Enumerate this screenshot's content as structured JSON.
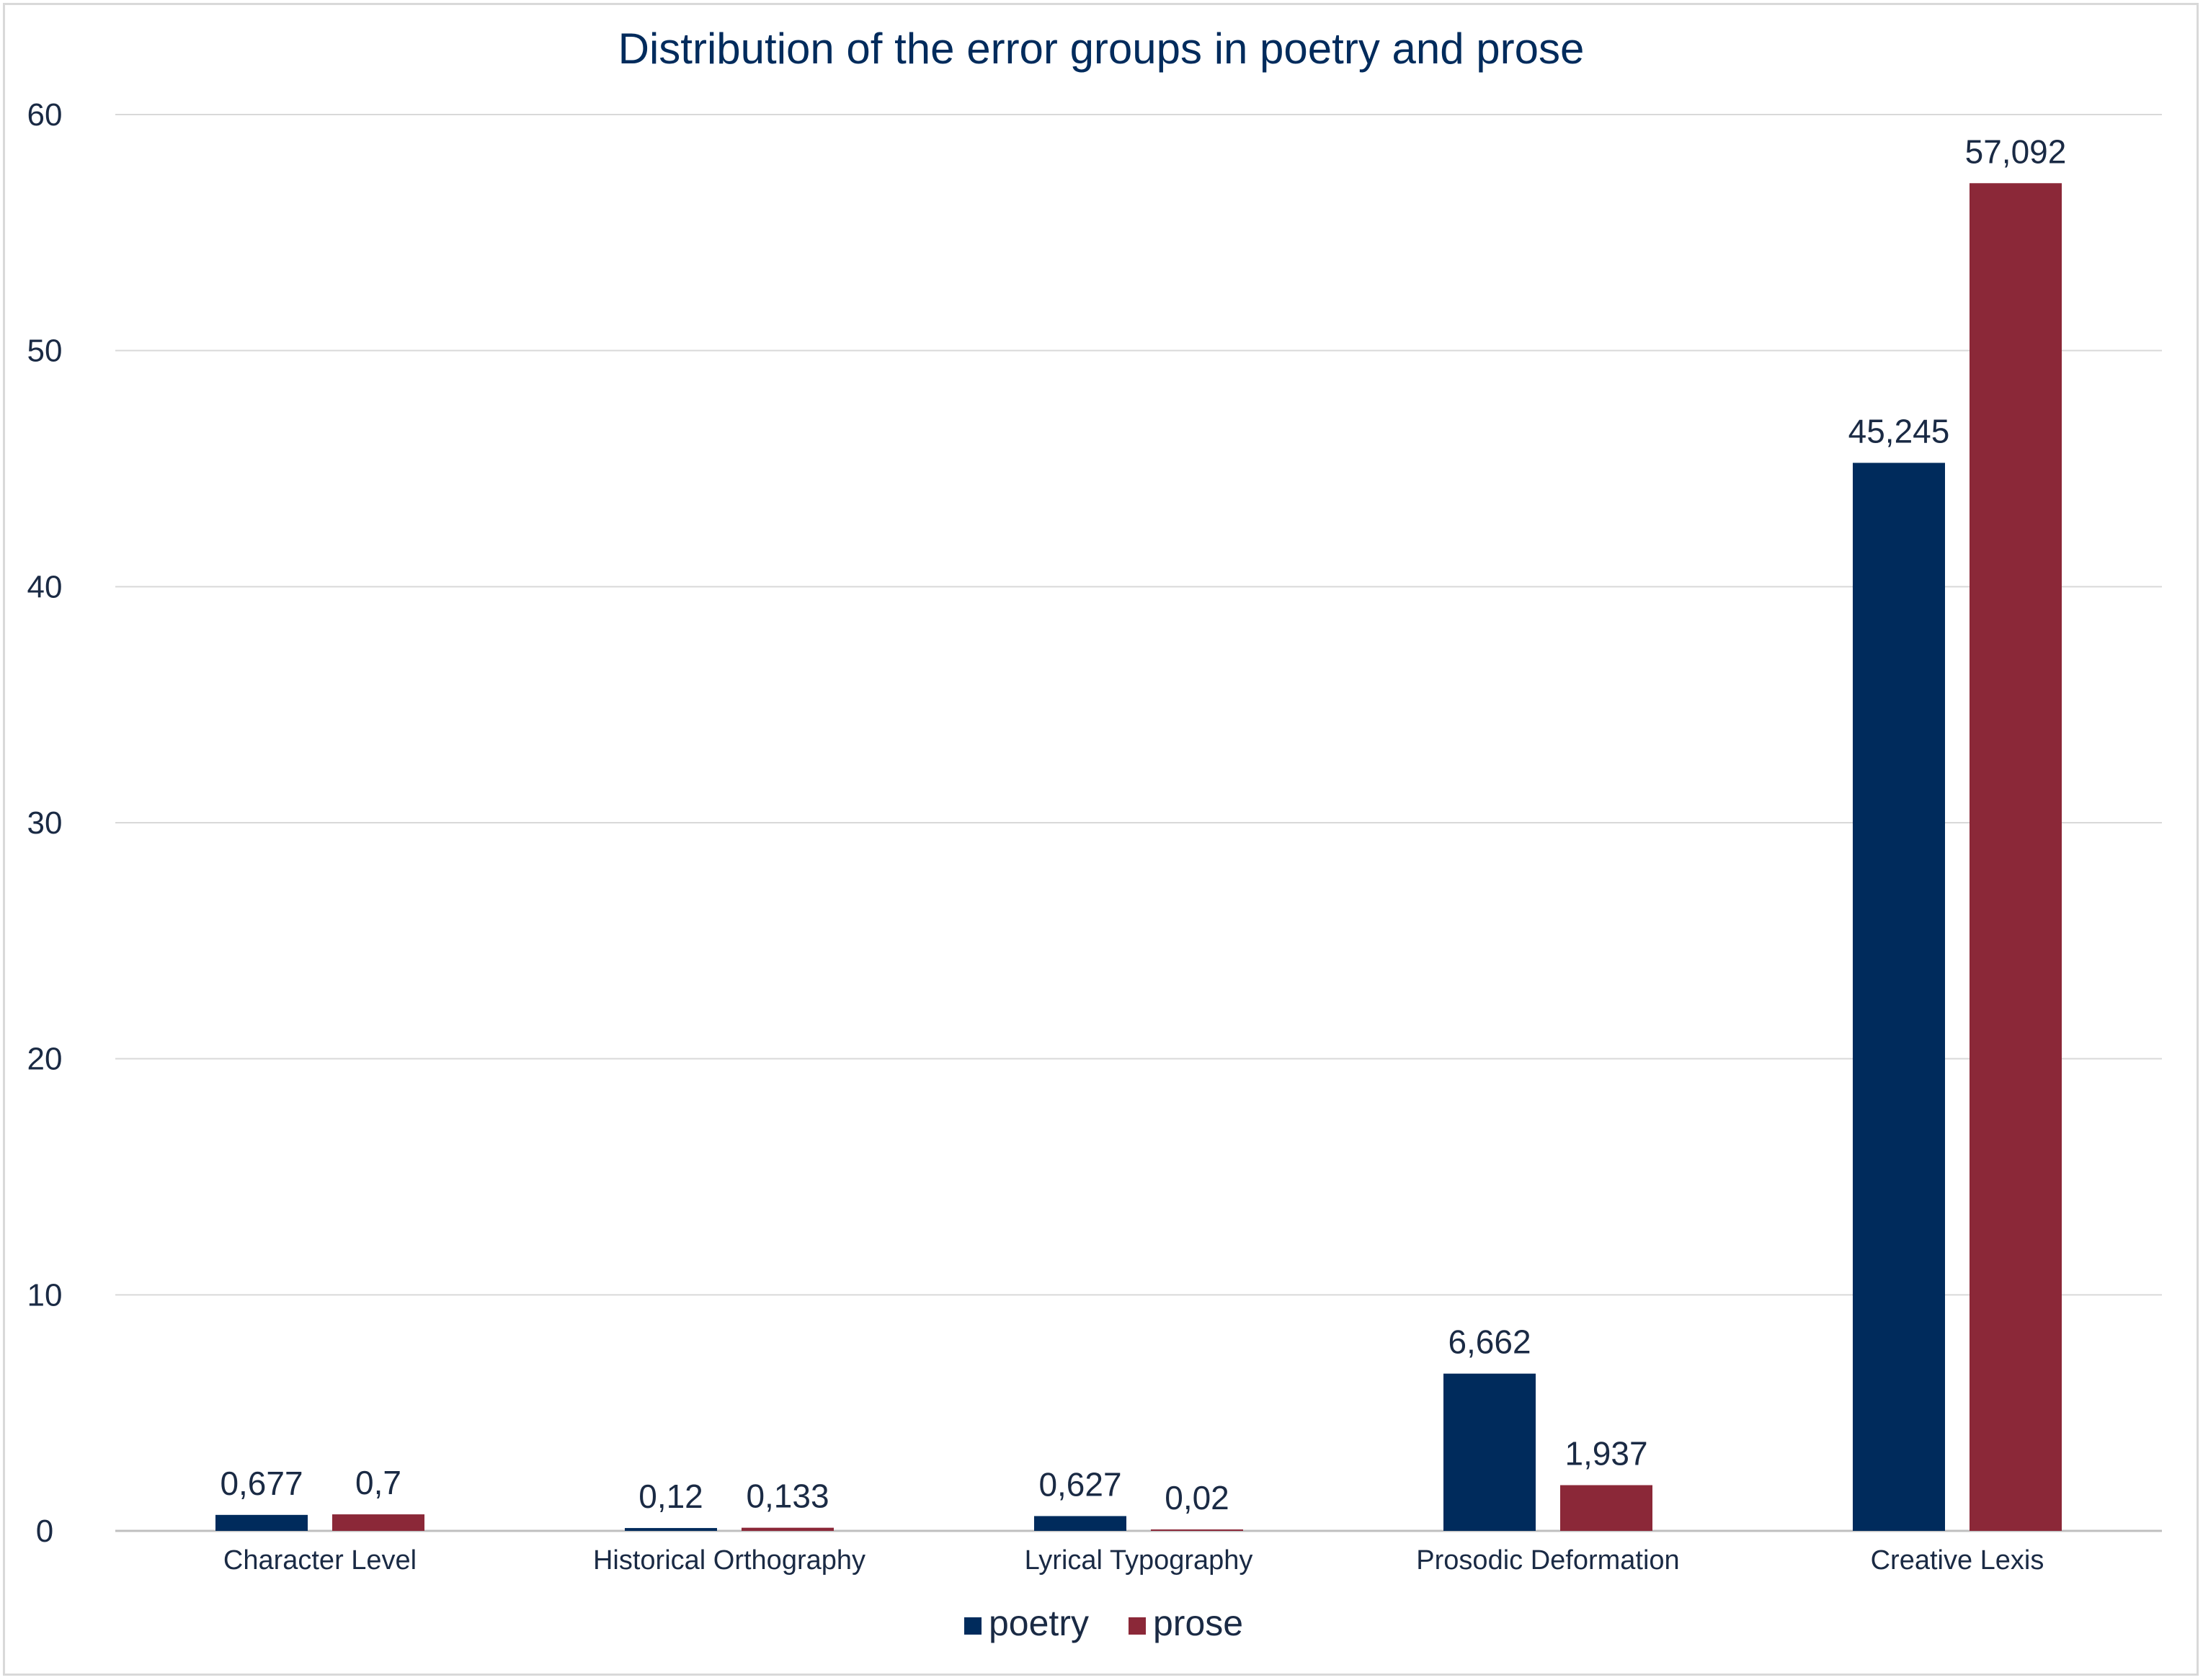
{
  "chart_data": {
    "type": "bar",
    "title": "Distribution of the error groups in poetry and prose",
    "xlabel": "",
    "ylabel": "",
    "categories": [
      "Character Level",
      "Historical Orthography",
      "Lyrical Typography",
      "Prosodic Deformation",
      "Creative Lexis"
    ],
    "series": [
      {
        "name": "poetry",
        "color": "#002b5c",
        "values": [
          0.677,
          0.12,
          0.627,
          6.662,
          45.245
        ],
        "labels": [
          "0,677",
          "0,12",
          "0,627",
          "6,662",
          "45,245"
        ]
      },
      {
        "name": "prose",
        "color": "#8b2838",
        "values": [
          0.7,
          0.133,
          0.02,
          1.937,
          57.092
        ],
        "labels": [
          "0,7",
          "0,133",
          "0,02",
          "1,937",
          "57,092"
        ]
      }
    ],
    "ylim": [
      0,
      60
    ],
    "yticks": [
      0,
      10,
      20,
      30,
      40,
      50,
      60
    ],
    "grid": true,
    "legend_position": "bottom"
  }
}
